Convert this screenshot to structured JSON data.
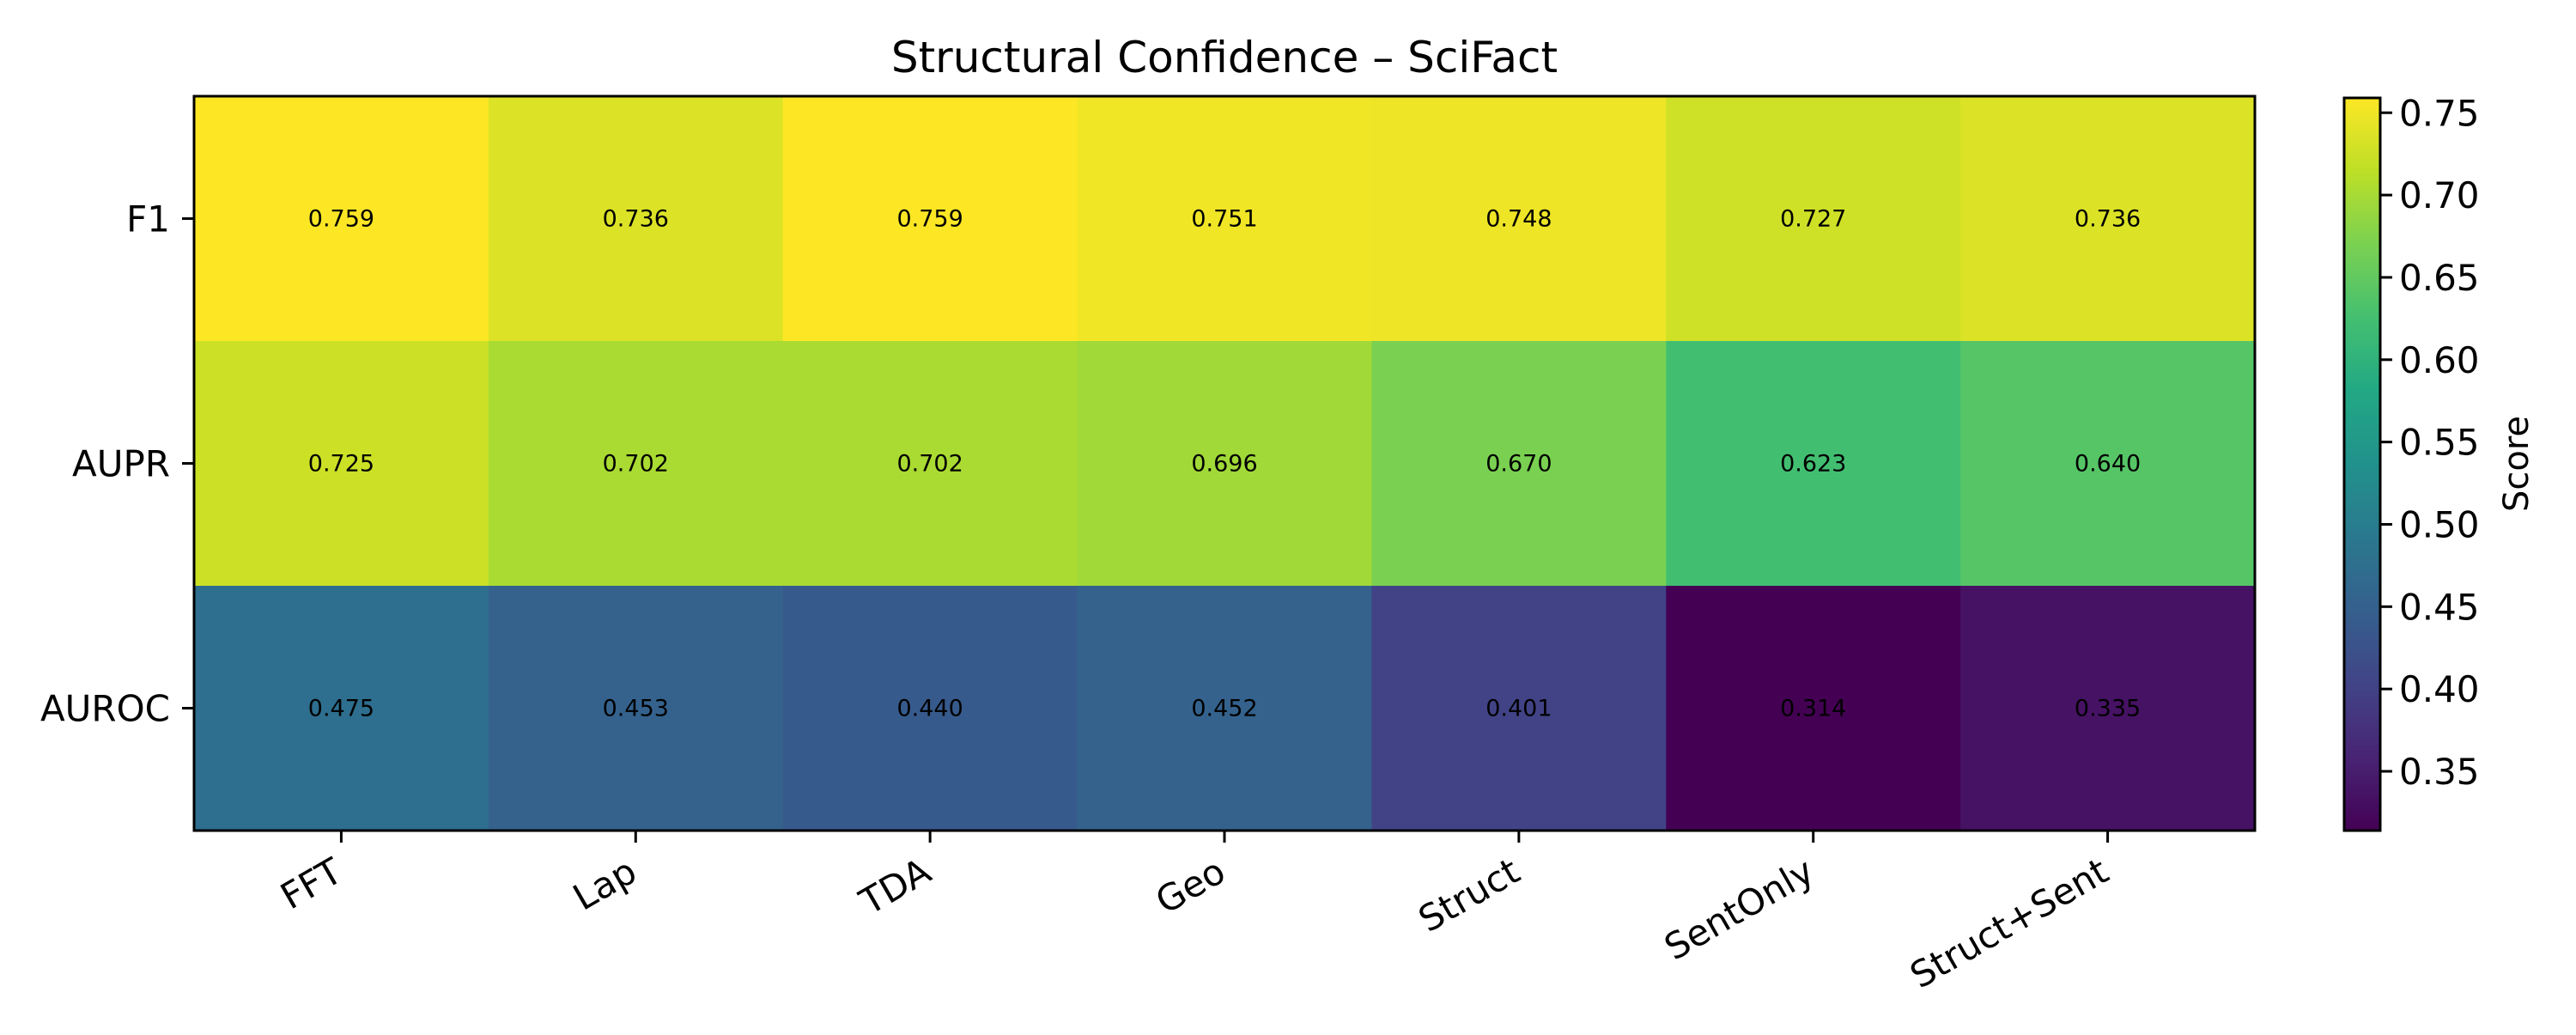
{
  "chart_data": {
    "type": "heatmap",
    "title": "Structural Confidence – SciFact",
    "x_categories": [
      "FFT",
      "Lap",
      "TDA",
      "Geo",
      "Struct",
      "SentOnly",
      "Struct+Sent"
    ],
    "y_categories": [
      "F1",
      "AUPR",
      "AUROC"
    ],
    "values": [
      [
        0.759,
        0.736,
        0.759,
        0.751,
        0.748,
        0.727,
        0.736
      ],
      [
        0.725,
        0.702,
        0.702,
        0.696,
        0.67,
        0.623,
        0.64
      ],
      [
        0.475,
        0.453,
        0.44,
        0.452,
        0.401,
        0.314,
        0.335
      ]
    ],
    "cell_labels": [
      [
        "0.759",
        "0.736",
        "0.759",
        "0.751",
        "0.748",
        "0.727",
        "0.736"
      ],
      [
        "0.725",
        "0.702",
        "0.702",
        "0.696",
        "0.670",
        "0.623",
        "0.640"
      ],
      [
        "0.475",
        "0.453",
        "0.440",
        "0.452",
        "0.401",
        "0.314",
        "0.335"
      ]
    ],
    "colormap": "viridis",
    "vmin": 0.314,
    "vmax": 0.759,
    "colorbar": {
      "label": "Score",
      "ticks": [
        0.35,
        0.4,
        0.45,
        0.5,
        0.55,
        0.6,
        0.65,
        0.7,
        0.75
      ],
      "tick_labels": [
        "0.35",
        "0.40",
        "0.45",
        "0.50",
        "0.55",
        "0.60",
        "0.65",
        "0.70",
        "0.75"
      ]
    },
    "grid": false,
    "legend": "none"
  }
}
